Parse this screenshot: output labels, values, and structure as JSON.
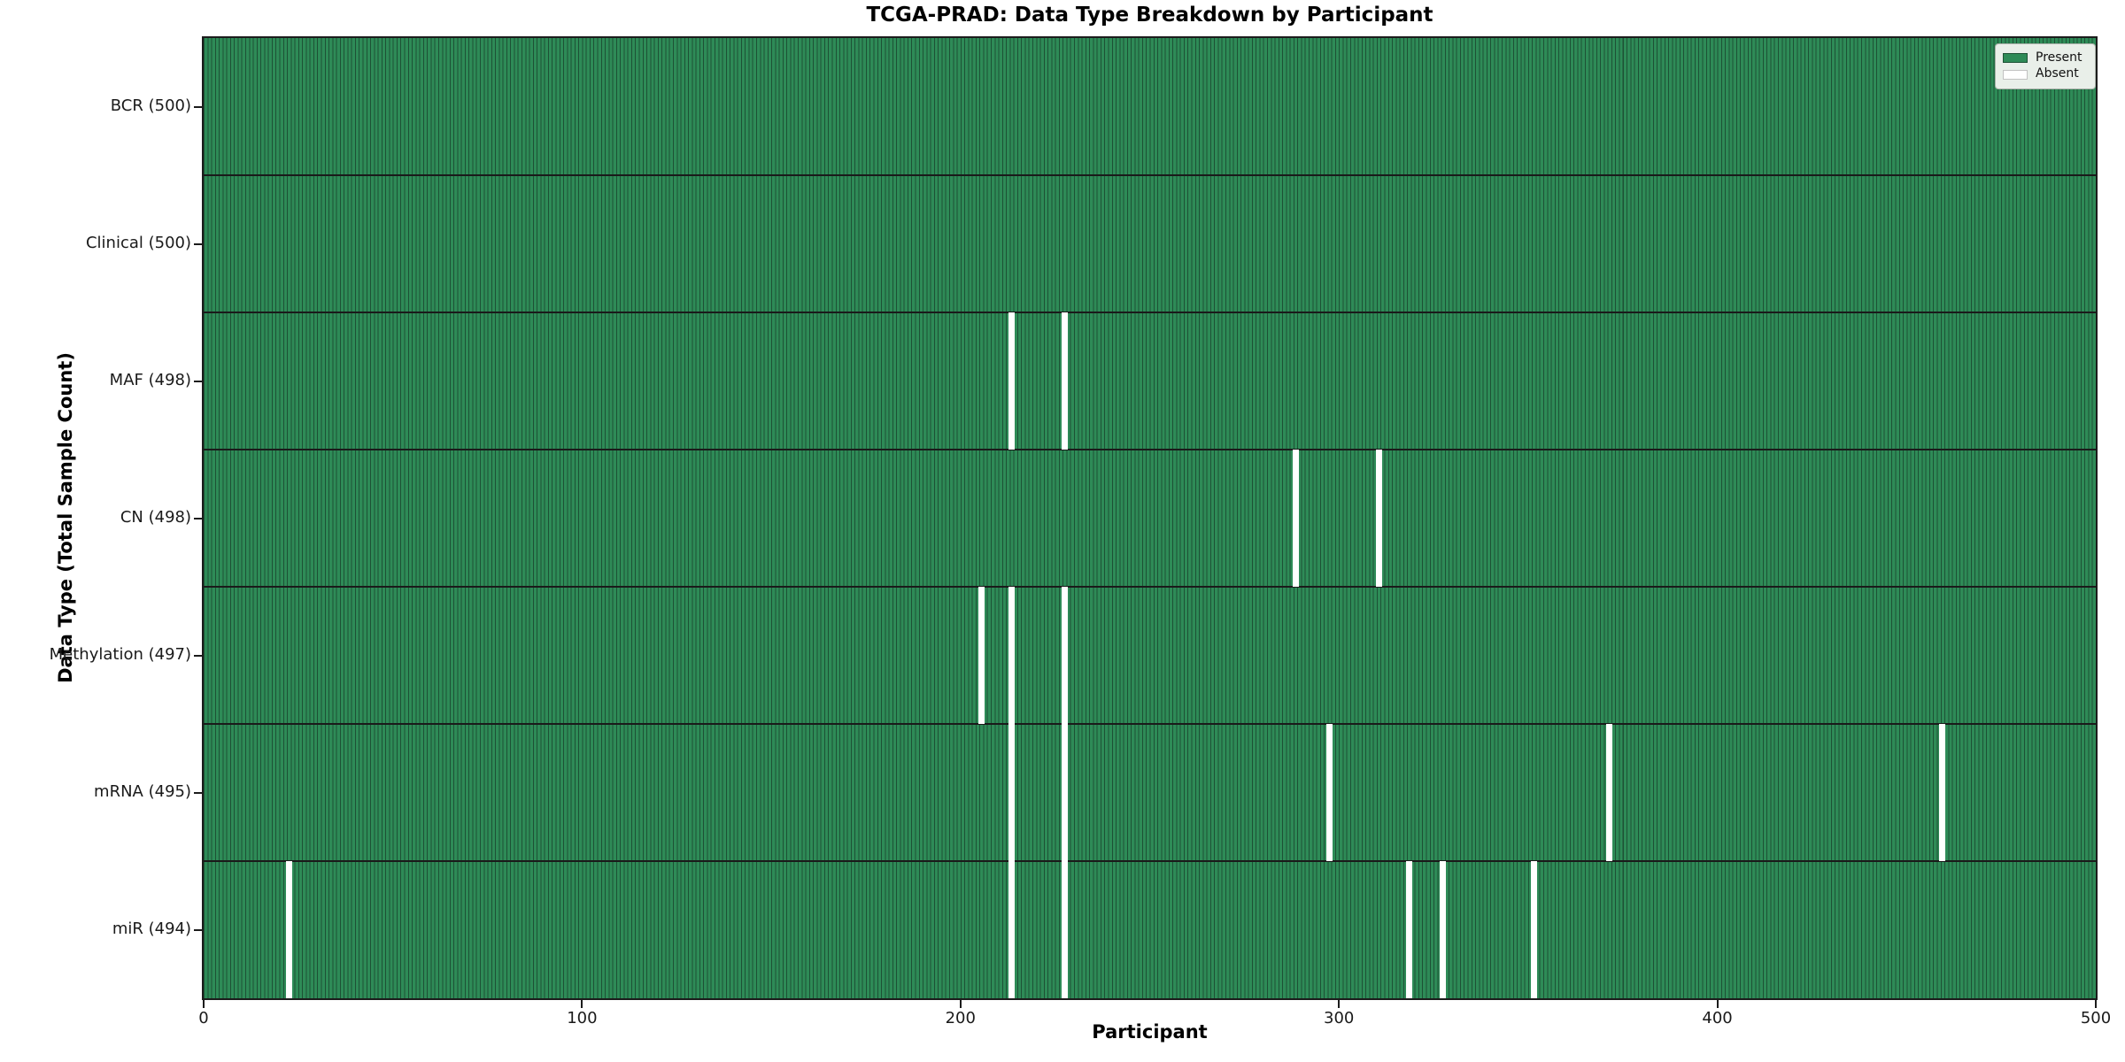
{
  "chart_data": {
    "type": "heatmap",
    "title": "TCGA-PRAD: Data Type Breakdown by Participant",
    "xlabel": "Participant",
    "ylabel": "Data Type (Total Sample Count)",
    "x_ticks": [
      0,
      100,
      200,
      300,
      400,
      500
    ],
    "xlim": [
      0,
      500
    ],
    "n_participants": 500,
    "grid": false,
    "legend": {
      "position": "upper right",
      "items": [
        {
          "label": "Present",
          "color": "#2e8b57",
          "edge": "#1d5135"
        },
        {
          "label": "Absent",
          "color": "#ffffff",
          "edge": "#c2c2c2"
        }
      ]
    },
    "rows": [
      {
        "name": "BCR",
        "total": 500,
        "label": "BCR (500)",
        "absent_participants": []
      },
      {
        "name": "Clinical",
        "total": 500,
        "label": "Clinical (500)",
        "absent_participants": []
      },
      {
        "name": "MAF",
        "total": 498,
        "label": "MAF (498)",
        "absent_participants": [
          213,
          227
        ]
      },
      {
        "name": "CN",
        "total": 498,
        "label": "CN (498)",
        "absent_participants": [
          288,
          310
        ]
      },
      {
        "name": "Methylation",
        "total": 497,
        "label": "Methylation (497)",
        "absent_participants": [
          205,
          213,
          227
        ]
      },
      {
        "name": "mRNA",
        "total": 495,
        "label": "mRNA (495)",
        "absent_participants": [
          213,
          227,
          297,
          371,
          459
        ]
      },
      {
        "name": "miR",
        "total": 494,
        "label": "miR (494)",
        "absent_participants": [
          22,
          213,
          227,
          318,
          327,
          351
        ]
      }
    ],
    "colors": {
      "present": "#2e8b57",
      "present_edge": "#1d5135",
      "absent": "#ffffff",
      "divider": "#1a1a1a",
      "spine": "#1c1c1c"
    }
  }
}
